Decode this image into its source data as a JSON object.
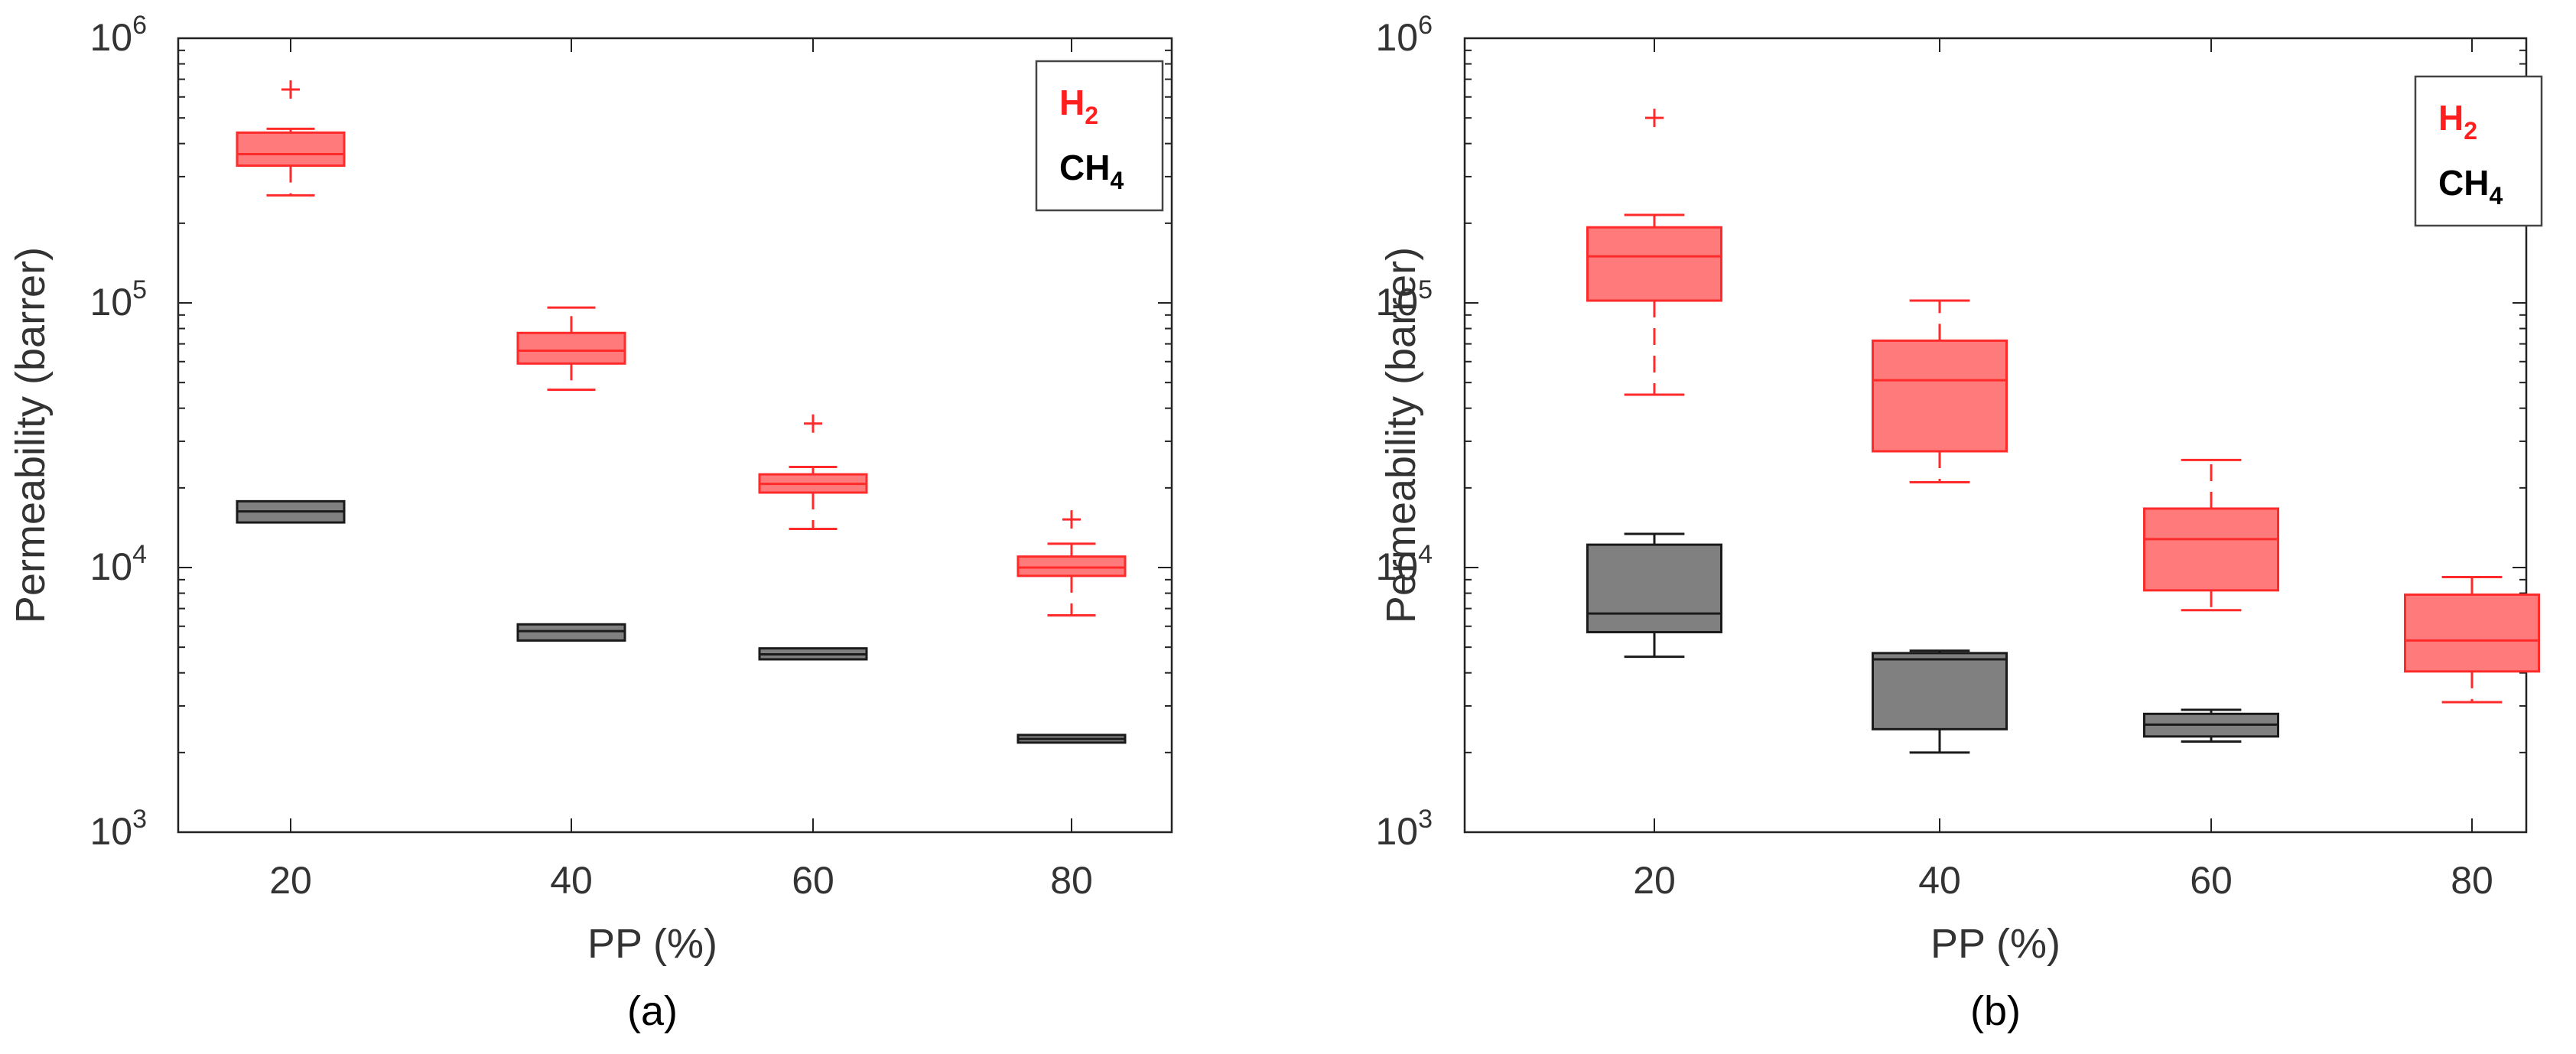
{
  "colors": {
    "h2_stroke": "#ff2a2a",
    "h2_fill": "#ff7b7b",
    "ch4_stroke": "#1a1a1a",
    "ch4_fill": "#808080",
    "axis": "#222222",
    "text": "#333333"
  },
  "chart_data": [
    {
      "panel_label": "(a)",
      "type": "box",
      "yscale": "log",
      "ylim": [
        1000,
        1000000
      ],
      "ylabel": "Permeability (barrer)",
      "xlabel": "PP (%)",
      "categories": [
        "20",
        "40",
        "60",
        "80"
      ],
      "ytick_labels": [
        {
          "base": "10",
          "exp": "3"
        },
        {
          "base": "10",
          "exp": "4"
        },
        {
          "base": "10",
          "exp": "5"
        },
        {
          "base": "10",
          "exp": "6"
        }
      ],
      "legend": [
        {
          "name": "H",
          "sub": "2",
          "color": "#ff1f1f"
        },
        {
          "name": "CH",
          "sub": "4",
          "color": "#000000"
        }
      ],
      "legend_position": "top-right",
      "series": [
        {
          "name": "H2",
          "boxes": [
            {
              "category": "20",
              "whisker_low": 255000,
              "q1": 330000,
              "median": 365000,
              "q3": 440000,
              "whisker_high": 455000,
              "outliers": [
                640000
              ]
            },
            {
              "category": "40",
              "whisker_low": 47000,
              "q1": 59000,
              "median": 66000,
              "q3": 77000,
              "whisker_high": 96000,
              "outliers": []
            },
            {
              "category": "60",
              "whisker_low": 14000,
              "q1": 19200,
              "median": 20700,
              "q3": 22500,
              "whisker_high": 24000,
              "outliers": [
                35000
              ]
            },
            {
              "category": "80",
              "whisker_low": 6600,
              "q1": 9300,
              "median": 10000,
              "q3": 11000,
              "whisker_high": 12300,
              "outliers": [
                15200
              ]
            }
          ]
        },
        {
          "name": "CH4",
          "boxes": [
            {
              "category": "20",
              "whisker_low": 14800,
              "q1": 14800,
              "median": 16300,
              "q3": 17800,
              "whisker_high": 17800,
              "outliers": []
            },
            {
              "category": "40",
              "whisker_low": 5300,
              "q1": 5300,
              "median": 5750,
              "q3": 6100,
              "whisker_high": 6100,
              "outliers": []
            },
            {
              "category": "60",
              "whisker_low": 4500,
              "q1": 4500,
              "median": 4700,
              "q3": 4950,
              "whisker_high": 4950,
              "outliers": []
            },
            {
              "category": "80",
              "whisker_low": 2180,
              "q1": 2180,
              "median": 2250,
              "q3": 2330,
              "whisker_high": 2330,
              "outliers": []
            }
          ]
        }
      ]
    },
    {
      "panel_label": "(b)",
      "type": "box",
      "yscale": "log",
      "ylim": [
        1000,
        1000000
      ],
      "ylabel": "Permeability (barrer)",
      "xlabel": "PP (%)",
      "categories": [
        "20",
        "40",
        "60",
        "80"
      ],
      "ytick_labels": [
        {
          "base": "10",
          "exp": "3"
        },
        {
          "base": "10",
          "exp": "4"
        },
        {
          "base": "10",
          "exp": "5"
        },
        {
          "base": "10",
          "exp": "6"
        }
      ],
      "legend": [
        {
          "name": "H",
          "sub": "2",
          "color": "#ff1f1f"
        },
        {
          "name": "CH",
          "sub": "4",
          "color": "#000000"
        }
      ],
      "legend_position": "top-right",
      "series": [
        {
          "name": "H2",
          "boxes": [
            {
              "category": "20",
              "whisker_low": 45000,
              "q1": 102000,
              "median": 150000,
              "q3": 193000,
              "whisker_high": 215000,
              "outliers": [
                500000
              ]
            },
            {
              "category": "40",
              "whisker_low": 21000,
              "q1": 27500,
              "median": 51000,
              "q3": 72000,
              "whisker_high": 102000,
              "outliers": []
            },
            {
              "category": "60",
              "whisker_low": 6900,
              "q1": 8200,
              "median": 12800,
              "q3": 16700,
              "whisker_high": 25500,
              "outliers": []
            },
            {
              "category": "80",
              "whisker_low": 3100,
              "q1": 4050,
              "median": 5300,
              "q3": 7900,
              "whisker_high": 9200,
              "outliers": []
            }
          ]
        },
        {
          "name": "CH4",
          "boxes": [
            {
              "category": "20",
              "whisker_low": 4600,
              "q1": 5700,
              "median": 6700,
              "q3": 12200,
              "whisker_high": 13400,
              "outliers": []
            },
            {
              "category": "40",
              "whisker_low": 2000,
              "q1": 2450,
              "median": 4500,
              "q3": 4750,
              "whisker_high": 4850,
              "outliers": []
            },
            {
              "category": "60",
              "whisker_low": 2200,
              "q1": 2300,
              "median": 2550,
              "q3": 2800,
              "whisker_high": 2900,
              "outliers": []
            }
          ]
        }
      ]
    }
  ]
}
